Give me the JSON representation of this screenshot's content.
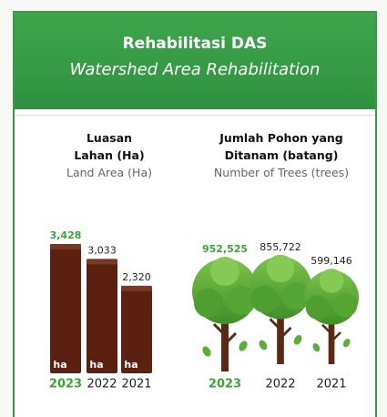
{
  "header": {
    "title": "Rehabilitasi DAS",
    "subtitle": "Watershed Area Rehabilitation"
  },
  "chart_data": [
    {
      "type": "bar",
      "title": "Luasan Lahan (Ha)",
      "subtitle": "Land Area (Ha)",
      "categories": [
        "2023",
        "2022",
        "2021"
      ],
      "values": [
        3428,
        3033,
        2320
      ],
      "value_labels": [
        "3,428",
        "3,033",
        "2,320"
      ],
      "bar_label": "ha",
      "color": "#5b200f",
      "highlight": "2023",
      "highlight_color": "#3aa535",
      "ylim": [
        0,
        3428
      ]
    },
    {
      "type": "pictograph",
      "title": "Jumlah Pohon yang Ditanam (batang)",
      "subtitle": "Number of Trees (trees)",
      "categories": [
        "2023",
        "2022",
        "2021"
      ],
      "values": [
        952525,
        855722,
        599146
      ],
      "value_labels": [
        "952,525",
        "855,722",
        "599,146"
      ],
      "color": "#5cae3a",
      "highlight": "2023",
      "highlight_color": "#3aa535",
      "ylim": [
        0,
        952525
      ]
    }
  ]
}
